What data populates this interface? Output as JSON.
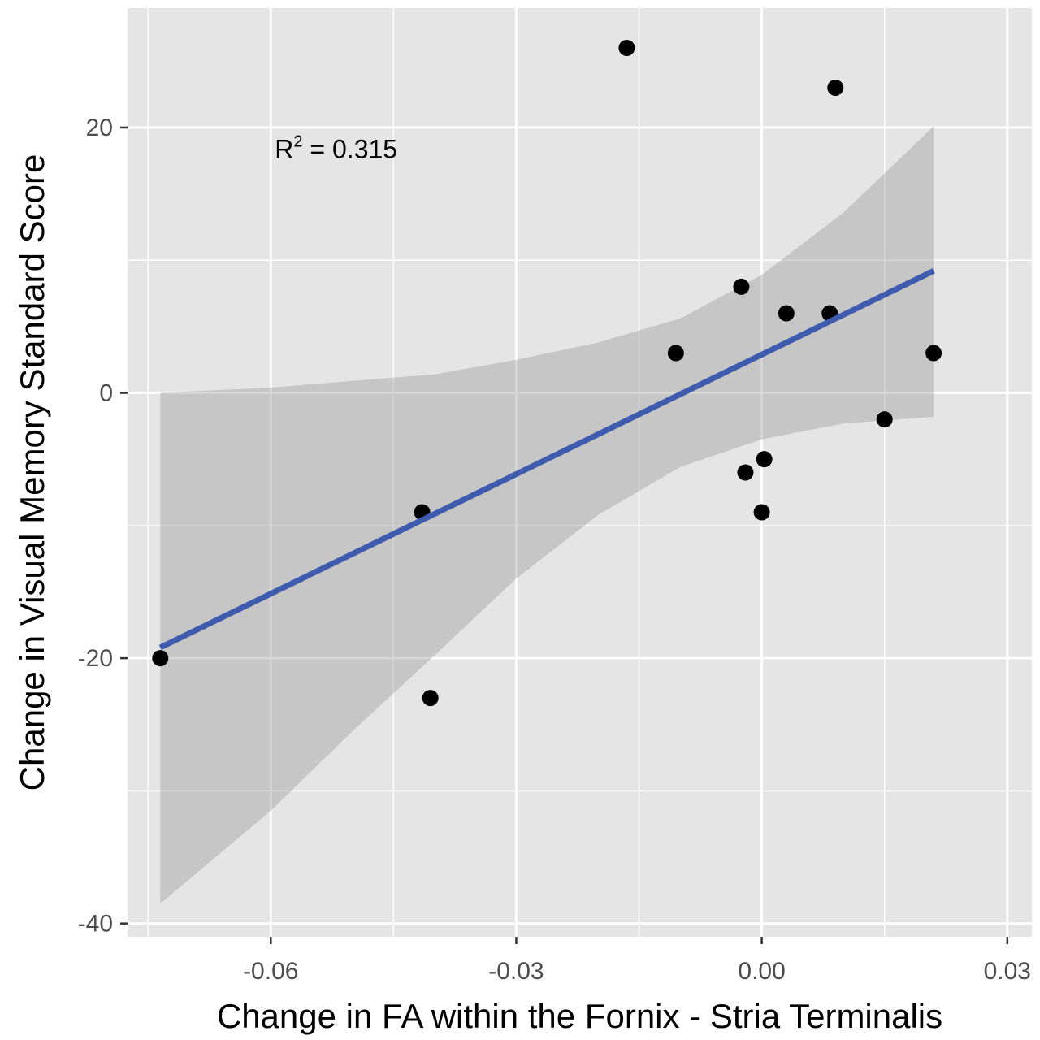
{
  "chart_data": {
    "type": "scatter",
    "title": "",
    "xlabel": "Change in FA within the Fornix - Stria Terminalis",
    "ylabel": "Change in Visual Memory Standard Score",
    "xlim": [
      -0.0775,
      0.033
    ],
    "ylim": [
      -41,
      29
    ],
    "x_ticks": [
      -0.06,
      -0.03,
      0.0,
      0.03
    ],
    "x_tick_labels": [
      "-0.06",
      "-0.03",
      "0.00",
      "0.03"
    ],
    "y_ticks": [
      -40,
      -20,
      0,
      20
    ],
    "y_tick_labels": [
      "-40",
      "-20",
      "0",
      "20"
    ],
    "grid": true,
    "points": [
      {
        "x": -0.0735,
        "y": -20
      },
      {
        "x": -0.0415,
        "y": -9
      },
      {
        "x": -0.0405,
        "y": -23
      },
      {
        "x": -0.0165,
        "y": 26
      },
      {
        "x": -0.0105,
        "y": 3
      },
      {
        "x": -0.0025,
        "y": 8
      },
      {
        "x": -0.002,
        "y": -6
      },
      {
        "x": 0.0,
        "y": -9
      },
      {
        "x": 0.0003,
        "y": -5
      },
      {
        "x": 0.003,
        "y": 6
      },
      {
        "x": 0.0083,
        "y": 6
      },
      {
        "x": 0.009,
        "y": 23
      },
      {
        "x": 0.015,
        "y": -2
      },
      {
        "x": 0.021,
        "y": 3
      }
    ],
    "fit_line": {
      "x": [
        -0.0735,
        0.021
      ],
      "y": [
        -19.2,
        9.2
      ]
    },
    "confidence_band": {
      "x": [
        -0.0735,
        -0.06,
        -0.05,
        -0.04,
        -0.03,
        -0.02,
        -0.01,
        0.0,
        0.01,
        0.021
      ],
      "upper": [
        0.0,
        0.4,
        0.9,
        1.4,
        2.5,
        3.8,
        5.6,
        8.9,
        13.6,
        20.1
      ],
      "lower": [
        -38.5,
        -31.5,
        -25.5,
        -19.8,
        -14.0,
        -9.2,
        -5.6,
        -3.5,
        -2.3,
        -1.8
      ]
    },
    "annotation": {
      "base": "R",
      "sup": "2",
      "text": " = 0.315",
      "x": -0.0595,
      "y": 17.7
    },
    "colors": {
      "panel_bg": "#e5e5e5",
      "grid": "#ffffff",
      "points": "#000000",
      "fit_line": "#3f5bae",
      "band": "#999999"
    }
  }
}
